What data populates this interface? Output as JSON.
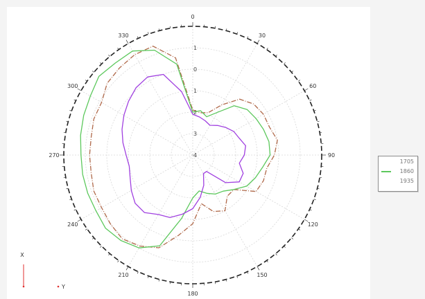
{
  "chart_data": {
    "type": "polar-line",
    "angle_labels": [
      "0",
      "30",
      "60",
      "90",
      "120",
      "150",
      "180",
      "210",
      "240",
      "270",
      "300",
      "330"
    ],
    "radial_labels": [
      "1",
      "0",
      "1",
      "2",
      "3",
      "4"
    ],
    "r_range": [
      -4,
      2
    ],
    "theta_direction": "clockwise",
    "theta_zero": "top",
    "grid": true,
    "legend_position": "right",
    "series": [
      {
        "name": "1705",
        "color": "#b0694a",
        "dash": "7 2 1 2",
        "angles": [
          0,
          10,
          20,
          30,
          40,
          50,
          60,
          70,
          80,
          90,
          100,
          110,
          120,
          130,
          140,
          150,
          160,
          170,
          180,
          190,
          200,
          210,
          220,
          230,
          240,
          250,
          260,
          270,
          280,
          290,
          300,
          310,
          320,
          330,
          340,
          350
        ],
        "values": [
          -1.9,
          -2.0,
          -1.9,
          -1.3,
          -0.6,
          -0.3,
          -0.2,
          -0.2,
          0.0,
          -0.2,
          -0.5,
          -0.5,
          -0.6,
          -1.5,
          -1.5,
          -1.0,
          -1.2,
          -1.7,
          -0.8,
          -0.2,
          0.6,
          0.9,
          1.1,
          1.0,
          0.9,
          0.9,
          0.8,
          0.8,
          0.8,
          0.9,
          0.9,
          1.2,
          1.3,
          1.4,
          1.4,
          0.6
        ]
      },
      {
        "name": "1860",
        "color": "#5cc85c",
        "dash": "",
        "angles": [
          0,
          10,
          20,
          30,
          40,
          50,
          60,
          70,
          80,
          90,
          100,
          110,
          120,
          130,
          140,
          150,
          160,
          170,
          180,
          190,
          200,
          210,
          220,
          230,
          240,
          250,
          260,
          270,
          280,
          290,
          300,
          310,
          320,
          330,
          340,
          350
        ],
        "values": [
          -2.0,
          -1.9,
          -2.1,
          -1.7,
          -1.0,
          -0.7,
          -0.6,
          -0.5,
          -0.4,
          -0.4,
          -0.7,
          -0.9,
          -1.1,
          -1.5,
          -1.8,
          -1.9,
          -2.1,
          -2.3,
          -2.0,
          -1.0,
          0.5,
          1.0,
          1.2,
          1.3,
          1.2,
          1.2,
          1.2,
          1.2,
          1.3,
          1.4,
          1.5,
          1.7,
          1.6,
          1.6,
          1.2,
          0.3
        ]
      },
      {
        "name": "1935",
        "color": "#a040e0",
        "dash": "",
        "angles": [
          0,
          10,
          20,
          30,
          40,
          50,
          60,
          70,
          80,
          90,
          100,
          110,
          120,
          130,
          140,
          150,
          160,
          170,
          180,
          190,
          200,
          210,
          220,
          230,
          240,
          250,
          260,
          270,
          280,
          290,
          300,
          310,
          320,
          330,
          340,
          350
        ],
        "values": [
          -2.1,
          -2.2,
          -2.3,
          -2.4,
          -2.2,
          -2.0,
          -1.8,
          -1.7,
          -1.5,
          -1.6,
          -1.8,
          -1.5,
          -1.5,
          -2.0,
          -3.0,
          -3.0,
          -2.5,
          -2.0,
          -1.5,
          -1.2,
          -0.9,
          -0.8,
          -0.5,
          -0.5,
          -0.7,
          -0.9,
          -1.0,
          -0.9,
          -0.7,
          -0.5,
          -0.3,
          -0.1,
          0.1,
          0.2,
          0.0,
          -1.0
        ]
      }
    ]
  },
  "axis_indicator": {
    "x_label": "X",
    "y_label": "Y"
  }
}
